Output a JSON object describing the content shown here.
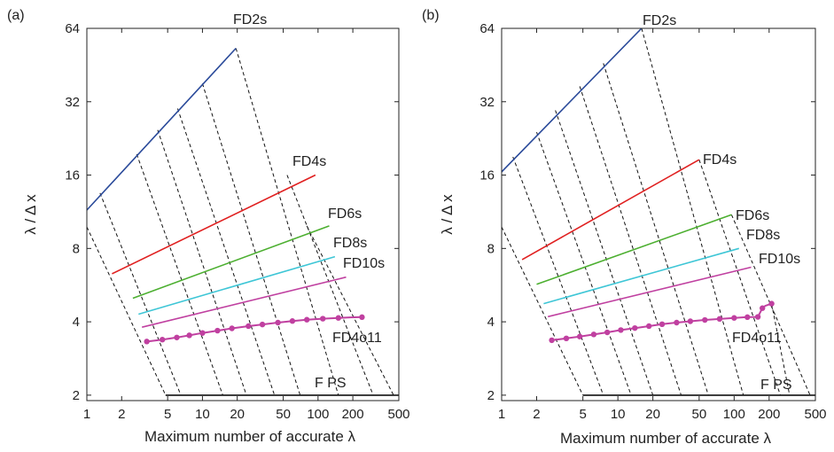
{
  "chart_data": [
    {
      "type": "line",
      "panel_label": "(a)",
      "xlabel": "Maximum number of accurate λ",
      "ylabel": "λ / Δ x",
      "xscale": "log2",
      "yscale": "log2",
      "xlim": [
        1,
        500
      ],
      "ylim": [
        1.9,
        64
      ],
      "xticks": [
        1,
        2,
        5,
        10,
        20,
        50,
        100,
        200,
        500
      ],
      "yticks": [
        2,
        4,
        8,
        16,
        32,
        64
      ],
      "xtick_labels": [
        "1",
        "2",
        "5",
        "10",
        "20",
        "50",
        "100",
        "200",
        "500"
      ],
      "ytick_labels": [
        "2",
        "4",
        "8",
        "16",
        "32",
        "64"
      ],
      "grid": false,
      "legend": "none",
      "series": [
        {
          "name": "FD2s",
          "color": "#2a4a9a",
          "x": [
            1,
            19.5
          ],
          "y": [
            11.5,
            53
          ]
        },
        {
          "name": "FD4s",
          "color": "#e02020",
          "x": [
            1.65,
            95
          ],
          "y": [
            6.3,
            16
          ]
        },
        {
          "name": "FD6s",
          "color": "#4caf30",
          "x": [
            2.5,
            125
          ],
          "y": [
            5.0,
            9.9
          ]
        },
        {
          "name": "FD8s",
          "color": "#3ec6d6",
          "x": [
            2.8,
            140
          ],
          "y": [
            4.3,
            7.4
          ]
        },
        {
          "name": "FD10s",
          "color": "#c040a0",
          "x": [
            3.0,
            175
          ],
          "y": [
            3.8,
            6.1
          ]
        },
        {
          "name": "FD4o11",
          "color": "#c040a0",
          "markers": true,
          "x": [
            3.3,
            4.5,
            6.0,
            7.7,
            10,
            13.5,
            18,
            25,
            33,
            45,
            60,
            80,
            110,
            150,
            190,
            240
          ],
          "y": [
            3.32,
            3.38,
            3.45,
            3.52,
            3.6,
            3.68,
            3.76,
            3.84,
            3.9,
            3.97,
            4.03,
            4.08,
            4.12,
            4.15,
            4.17,
            4.18
          ]
        },
        {
          "name": "F PS",
          "color": "#111111",
          "x": [
            4.8,
            500
          ],
          "y": [
            2.0,
            2.0
          ]
        }
      ],
      "dashed_lines": {
        "color": "#111111",
        "segments": [
          {
            "x": [
              1,
              4.8
            ],
            "y": [
              9.8,
              2.0
            ]
          },
          {
            "x": [
              1.3,
              6.5
            ],
            "y": [
              13.5,
              2.0
            ]
          },
          {
            "x": [
              2.7,
              15
            ],
            "y": [
              19.5,
              2.0
            ]
          },
          {
            "x": [
              4.1,
              24
            ],
            "y": [
              24.5,
              2.0
            ]
          },
          {
            "x": [
              6.1,
              42
            ],
            "y": [
              30,
              2.0
            ]
          },
          {
            "x": [
              10,
              70
            ],
            "y": [
              38,
              2.0
            ]
          },
          {
            "x": [
              19.5,
              150
            ],
            "y": [
              53,
              2.0
            ]
          },
          {
            "x": [
              54,
              300
            ],
            "y": [
              16,
              2.0
            ]
          },
          {
            "x": [
              80,
              450
            ],
            "y": [
              9.9,
              2.0
            ]
          }
        ]
      }
    },
    {
      "type": "line",
      "panel_label": "(b)",
      "xlabel": "Maximum number of accurate λ",
      "ylabel": "λ / Δ x",
      "xscale": "log2",
      "yscale": "log2",
      "xlim": [
        1,
        500
      ],
      "ylim": [
        1.9,
        64
      ],
      "xticks": [
        1,
        2,
        5,
        10,
        20,
        50,
        100,
        200,
        500
      ],
      "yticks": [
        2,
        4,
        8,
        16,
        32,
        64
      ],
      "xtick_labels": [
        "1",
        "2",
        "5",
        "10",
        "20",
        "50",
        "100",
        "200",
        "500"
      ],
      "ytick_labels": [
        "2",
        "4",
        "8",
        "16",
        "32",
        "64"
      ],
      "grid": false,
      "legend": "none",
      "series": [
        {
          "name": "FD2s",
          "color": "#2a4a9a",
          "x": [
            1,
            16
          ],
          "y": [
            16.5,
            64
          ]
        },
        {
          "name": "FD4s",
          "color": "#e02020",
          "x": [
            1.5,
            50
          ],
          "y": [
            7.2,
            18.5
          ]
        },
        {
          "name": "FD6s",
          "color": "#4caf30",
          "x": [
            2.0,
            95
          ],
          "y": [
            5.7,
            11
          ]
        },
        {
          "name": "FD8s",
          "color": "#3ec6d6",
          "x": [
            2.3,
            110
          ],
          "y": [
            4.75,
            8.0
          ]
        },
        {
          "name": "FD10s",
          "color": "#c040a0",
          "x": [
            2.5,
            140
          ],
          "y": [
            4.2,
            6.7
          ]
        },
        {
          "name": "FD4o11",
          "color": "#c040a0",
          "markers": true,
          "x": [
            2.7,
            3.6,
            4.7,
            6.2,
            8.1,
            10.6,
            14,
            18.5,
            24,
            32,
            42,
            56,
            75,
            100,
            130,
            160,
            175,
            185,
            210
          ],
          "y": [
            3.36,
            3.42,
            3.48,
            3.55,
            3.62,
            3.7,
            3.77,
            3.84,
            3.91,
            3.97,
            4.02,
            4.07,
            4.11,
            4.15,
            4.18,
            4.19,
            4.55,
            4.65,
            4.75
          ]
        },
        {
          "name": "F PS",
          "color": "#111111",
          "x": [
            5,
            500
          ],
          "y": [
            2.0,
            2.0
          ]
        }
      ],
      "dashed_lines": {
        "color": "#111111",
        "segments": [
          {
            "x": [
              1,
              5
            ],
            "y": [
              9.8,
              2.0
            ]
          },
          {
            "x": [
              1.25,
              7.5
            ],
            "y": [
              19,
              2.0
            ]
          },
          {
            "x": [
              2.0,
              13
            ],
            "y": [
              24,
              2.0
            ]
          },
          {
            "x": [
              2.9,
              20
            ],
            "y": [
              29.5,
              2.0
            ]
          },
          {
            "x": [
              4.7,
              35
            ],
            "y": [
              37,
              2.0
            ]
          },
          {
            "x": [
              7.5,
              60
            ],
            "y": [
              46,
              2.0
            ]
          },
          {
            "x": [
              16,
              120
            ],
            "y": [
              64,
              2.0
            ]
          },
          {
            "x": [
              50,
              250
            ],
            "y": [
              18.5,
              2.0
            ]
          },
          {
            "x": [
              95,
              450
            ],
            "y": [
              11,
              2.0
            ]
          },
          {
            "x": [
              210,
              300
            ],
            "y": [
              4.75,
              2.0
            ]
          }
        ]
      }
    }
  ]
}
